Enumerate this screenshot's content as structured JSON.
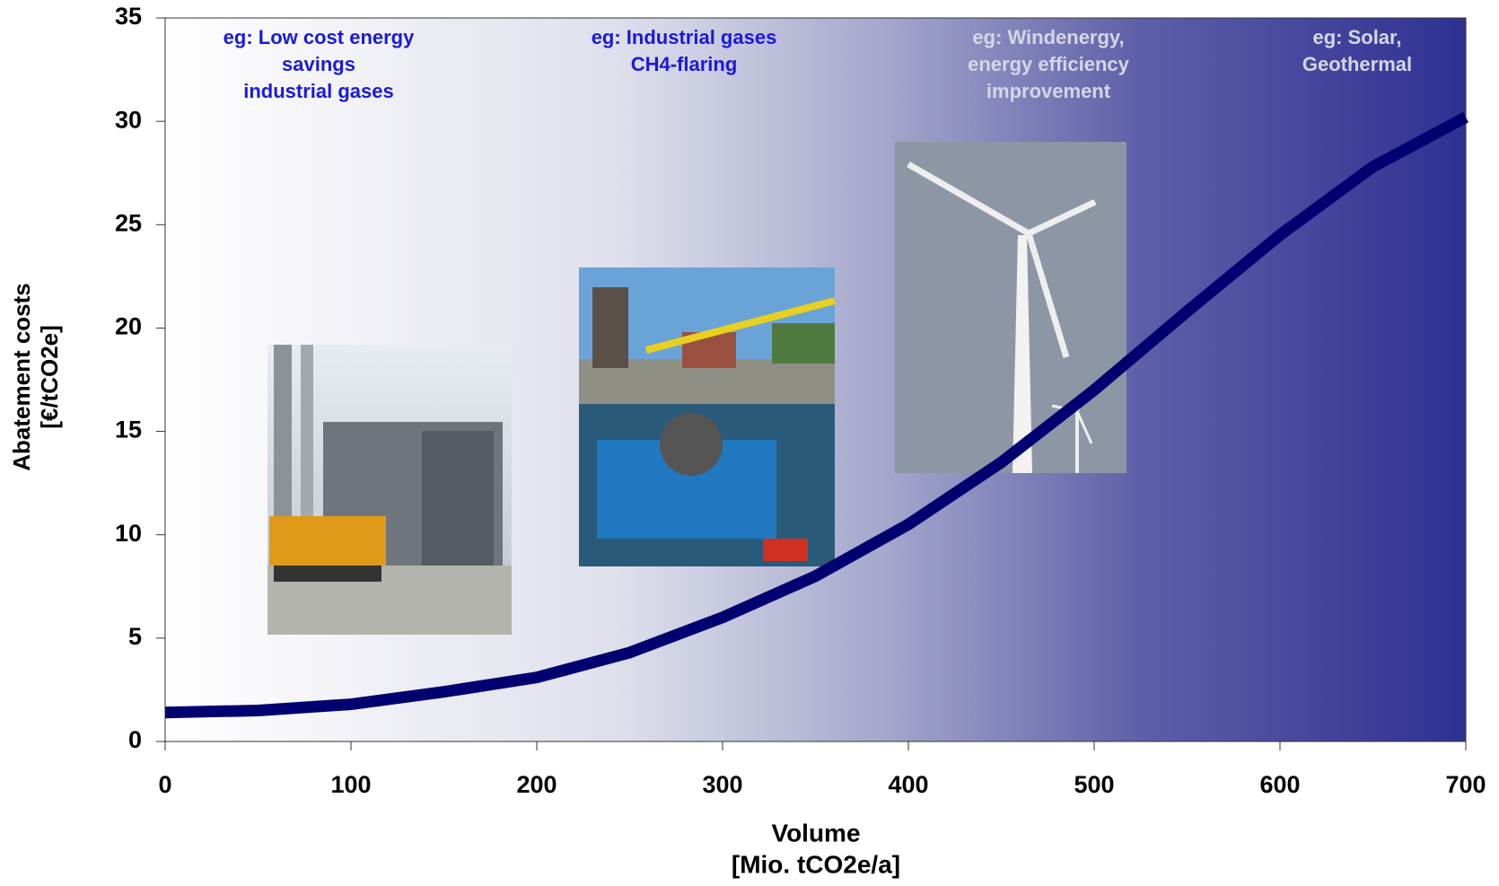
{
  "chart_data": {
    "type": "line",
    "x_label": [
      "Volume",
      "[Mio. tCO2e/a]"
    ],
    "y_label": [
      "Abatement costs",
      "[€/tCO2e]"
    ],
    "x": [
      0,
      50,
      100,
      150,
      200,
      250,
      300,
      350,
      400,
      450,
      500,
      550,
      600,
      650,
      700
    ],
    "series": [
      {
        "name": "Abatement costs",
        "color": "#000070",
        "values": [
          1.4,
          1.5,
          1.8,
          2.4,
          3.1,
          4.3,
          6.0,
          8.0,
          10.5,
          13.5,
          17.0,
          20.8,
          24.5,
          27.8,
          30.2
        ]
      }
    ],
    "xlim": [
      0,
      700
    ],
    "xticks": [
      0,
      100,
      200,
      300,
      400,
      500,
      600,
      700
    ],
    "ylim": [
      0,
      35
    ],
    "yticks": [
      0,
      5,
      10,
      15,
      20,
      25,
      30,
      35
    ],
    "annotations": [
      {
        "lines": [
          "eg: Low cost energy",
          "savings",
          "industrial gases"
        ],
        "color": "#1a1adb"
      },
      {
        "lines": [
          "eg: Industrial gases",
          "CH4-flaring"
        ],
        "color": "#1a1adb"
      },
      {
        "lines": [
          "eg: Windenergy,",
          "energy efficiency",
          "improvement"
        ],
        "color": "#d6d6e6"
      },
      {
        "lines": [
          "eg: Solar,",
          "Geothermal"
        ],
        "color": "#d6d6e6"
      }
    ]
  }
}
